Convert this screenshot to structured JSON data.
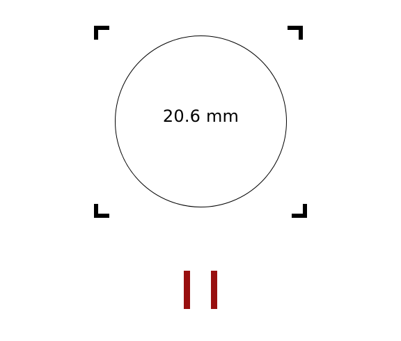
{
  "measurement": {
    "value": "20.6 mm"
  },
  "frame": {
    "color": "#000000",
    "corner_icon": "viewfinder-corner-icon"
  },
  "controls": {
    "pause_icon": "pause-icon",
    "pause_color": "#980f0f"
  }
}
